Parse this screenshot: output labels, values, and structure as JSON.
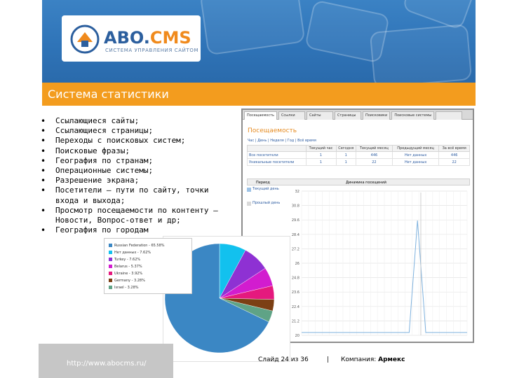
{
  "header": {
    "logo_prefix": "ABO.",
    "logo_suffix": "CMS",
    "logo_tagline": "СИСТЕМА УПРАВЛЕНИЯ САЙТОМ",
    "colors": {
      "blue": "#2f74b8",
      "orange": "#f39c1e"
    }
  },
  "title": "Система статистики",
  "bullets": [
    "Ссылающиеся сайты;",
    "Ссылающиеся страницы;",
    "Переходы с поисковых систем;",
    "Поисковые фразы;",
    "География по странам;",
    "Операционные системы;",
    "Разрешение экрана;",
    "Посетители – пути по сайту, точки входа и выхода;",
    "Просмотр посещаемости по контенту – Новости, Вопрос-ответ и др;",
    "География по городам"
  ],
  "stats_screenshot": {
    "tabs": [
      "Посещаемость",
      "Ссылки",
      "Сайты",
      "Страницы",
      "Поисковики",
      "Поисковые системы",
      ""
    ],
    "heading": "Посещаемость",
    "periods": [
      "Час",
      "День",
      "Неделя",
      "Год",
      "Всё время"
    ],
    "table": {
      "columns": [
        "",
        "Текущий час",
        "Сегодня",
        "Текущий месяц",
        "Предыдущий месяц",
        "За всё время"
      ],
      "rows": [
        [
          "Все посетители",
          "1",
          "1",
          "446",
          "Нет данных",
          "446"
        ],
        [
          "Уникальные посетители",
          "1",
          "1",
          "22",
          "Нет данных",
          "22"
        ]
      ]
    },
    "chart_head": {
      "left": "Период",
      "right": "Динамика посещений"
    },
    "legend": [
      "Текущий день",
      "Прошлый день"
    ],
    "y_ticks": [
      "32",
      "30.8",
      "29.6",
      "28.4",
      "27.2",
      "26",
      "24.8",
      "23.6",
      "22.4",
      "21.2",
      "20"
    ]
  },
  "pie": {
    "legend": [
      {
        "label": "Russian Federation - 65.58%",
        "color": "#3b87c4",
        "value": 65.58
      },
      {
        "label": "Нет данных - 7.62%",
        "color": "#12c1ee",
        "value": 7.62
      },
      {
        "label": "Turkey - 7.62%",
        "color": "#8e31d3",
        "value": 7.62
      },
      {
        "label": "Belarus - 5.37%",
        "color": "#d21ccf",
        "value": 5.37
      },
      {
        "label": "Ukraine - 3.92%",
        "color": "#e5197e",
        "value": 3.92
      },
      {
        "label": "Germany - 3.28%",
        "color": "#7c3f14",
        "value": 3.28
      },
      {
        "label": "Israel - 3.28%",
        "color": "#5fa386",
        "value": 3.28
      }
    ]
  },
  "footer": {
    "url": "http://www.abocms.ru/",
    "slide": "Слайд 24 из 36",
    "separator": "|",
    "company_label": "Компания:",
    "company_name": "Армекс"
  }
}
